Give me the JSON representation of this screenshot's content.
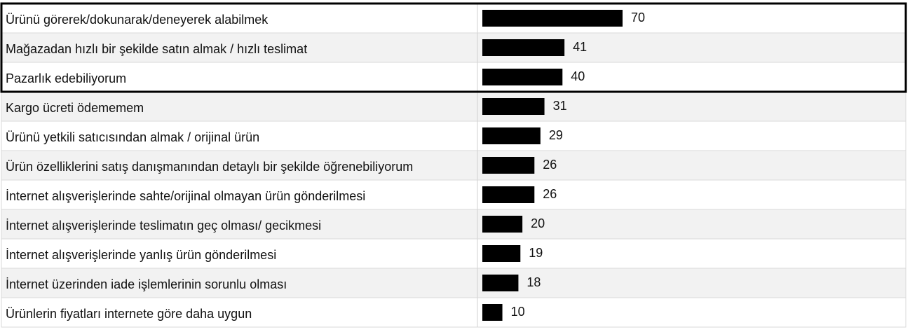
{
  "chart_data": {
    "type": "bar",
    "categories": [
      "Ürünü görerek/dokunarak/deneyerek alabilmek",
      "Mağazadan hızlı bir şekilde satın almak / hızlı teslimat",
      "Pazarlık edebiliyorum",
      "Kargo ücreti ödememem",
      "Ürünü yetkili satıcısından almak / orijinal ürün",
      "Ürün özelliklerini satış danışmanından detaylı bir şekilde öğrenebiliyorum",
      "İnternet alışverişlerinde sahte/orijinal olmayan ürün gönderilmesi",
      "İnternet alışverişlerinde teslimatın geç olması/ gecikmesi",
      "İnternet alışverişlerinde yanlış ürün gönderilmesi",
      "İnternet üzerinden iade işlemlerinin sorunlu olması",
      "Ürünlerin fiyatları internete göre daha uygun"
    ],
    "values": [
      70,
      41,
      40,
      31,
      29,
      26,
      26,
      20,
      19,
      18,
      10
    ],
    "color": "#000000"
  }
}
